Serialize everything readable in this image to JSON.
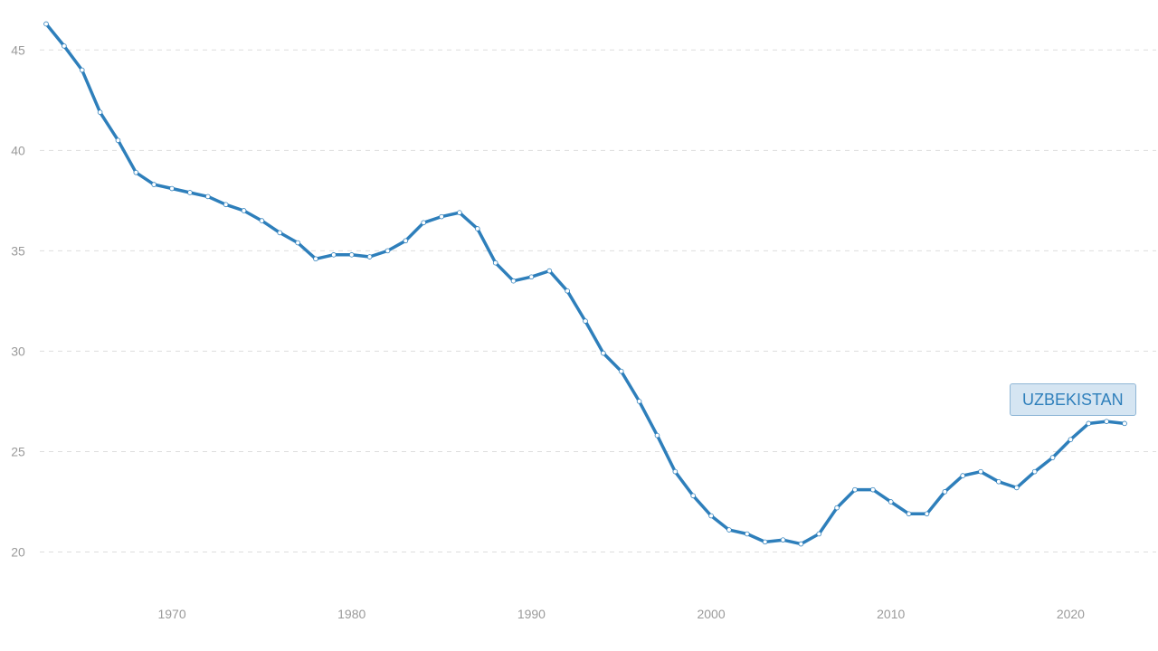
{
  "chart_data": {
    "type": "line",
    "title": "",
    "xlabel": "",
    "ylabel": "",
    "xlim": [
      1963,
      2023
    ],
    "ylim": [
      17.5,
      46.5
    ],
    "x_ticks": [
      "1970",
      "1980",
      "1990",
      "2000",
      "2010",
      "2020"
    ],
    "y_ticks": [
      "20",
      "25",
      "30",
      "35",
      "40",
      "45"
    ],
    "grid": true,
    "color": "#2e7fbb",
    "series": [
      {
        "name": "UZBEKISTAN",
        "x": [
          1963,
          1964,
          1965,
          1966,
          1967,
          1968,
          1969,
          1970,
          1971,
          1972,
          1973,
          1974,
          1975,
          1976,
          1977,
          1978,
          1979,
          1980,
          1981,
          1982,
          1983,
          1984,
          1985,
          1986,
          1987,
          1988,
          1989,
          1990,
          1991,
          1992,
          1993,
          1994,
          1995,
          1996,
          1997,
          1998,
          1999,
          2000,
          2001,
          2002,
          2003,
          2004,
          2005,
          2006,
          2007,
          2008,
          2009,
          2010,
          2011,
          2012,
          2013,
          2014,
          2015,
          2016,
          2017,
          2018,
          2019,
          2020,
          2021,
          2022,
          2023
        ],
        "values": [
          46.3,
          45.2,
          44.0,
          41.9,
          40.5,
          38.9,
          38.3,
          38.1,
          37.9,
          37.7,
          37.3,
          37.0,
          36.5,
          35.9,
          35.4,
          34.6,
          34.8,
          34.8,
          34.7,
          35.0,
          35.5,
          36.4,
          36.7,
          36.9,
          36.1,
          34.4,
          33.5,
          33.7,
          34.0,
          33.0,
          31.5,
          29.9,
          29.0,
          27.5,
          25.8,
          24.0,
          22.8,
          21.8,
          21.1,
          20.9,
          20.5,
          20.6,
          20.4,
          20.9,
          22.2,
          23.1,
          23.1,
          22.5,
          21.9,
          21.9,
          23.0,
          23.8,
          24.0,
          23.5,
          23.2,
          24.0,
          24.7,
          25.6,
          26.4,
          26.5,
          26.4
        ]
      }
    ]
  }
}
